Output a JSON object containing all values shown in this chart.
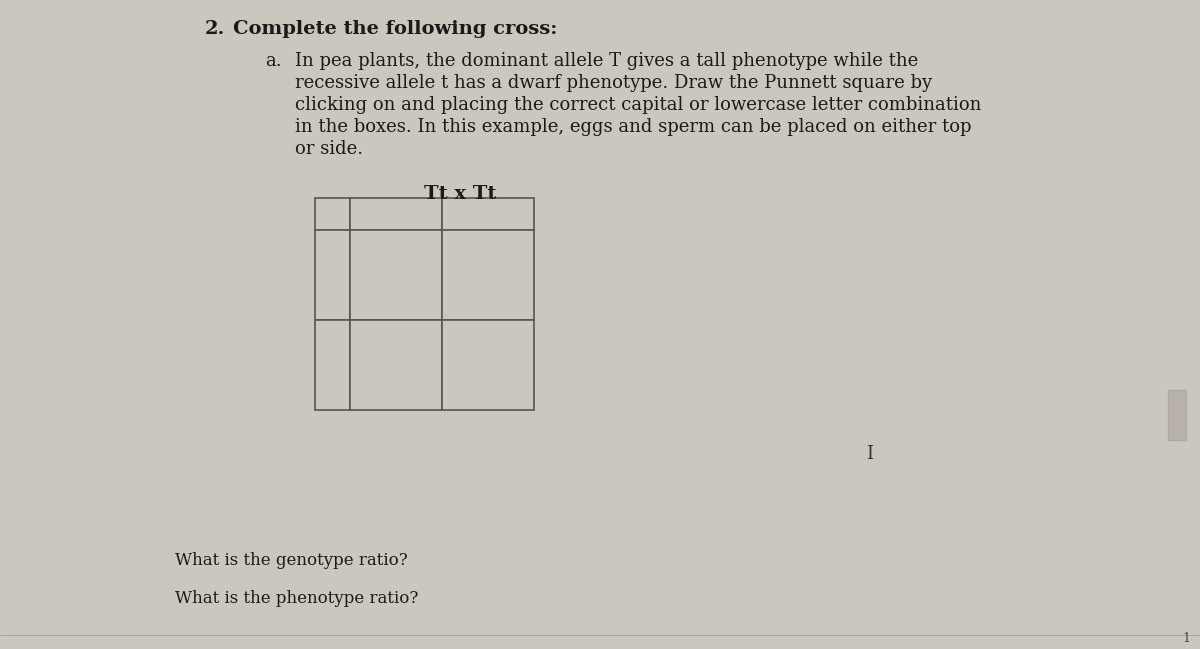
{
  "background_color": "#ccc7be",
  "title_number": "2.",
  "title_text": "Complete the following cross:",
  "sub_label": "a.",
  "paragraph_lines": [
    "In pea plants, the dominant allele T gives a tall phenotype while the",
    "recessive allele t has a dwarf phenotype. Draw the Punnett square by",
    "clicking on and placing the correct capital or lowercase letter combination",
    "in the boxes. In this example, eggs and sperm can be placed on either top",
    "or side."
  ],
  "cross_label": "Tt x Tt",
  "question1": "What is the genotype ratio?",
  "question2": "What is the phenotype ratio?",
  "grid_color": "#555555",
  "grid_linewidth": 1.2,
  "cell_fill": "#ccc7be",
  "font_family": "serif",
  "title_fontsize": 14,
  "body_fontsize": 13,
  "cross_fontsize": 14,
  "question_fontsize": 12
}
